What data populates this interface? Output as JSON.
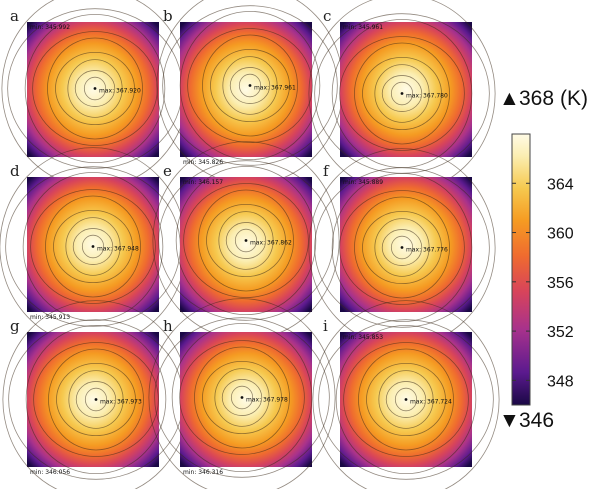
{
  "chart_data": {
    "type": "heatmap",
    "title": "",
    "colorbar": {
      "unit": "(K)",
      "max_label": "368",
      "min_label": "346",
      "max_arrow": "▲",
      "min_arrow": "▼",
      "range": [
        346,
        368
      ],
      "ticks": [
        "364",
        "360",
        "356",
        "352",
        "348"
      ],
      "tick_values": [
        364,
        360,
        356,
        352,
        348
      ],
      "colors": [
        "#1a0845",
        "#5b1a8e",
        "#a8328c",
        "#d8445a",
        "#ef6b2f",
        "#f59b22",
        "#f6c94f",
        "#fbeeb2",
        "#fffbe6"
      ]
    },
    "panels": [
      {
        "label": "a",
        "max_text": "max: 367.920",
        "min_text": "min: 345.992",
        "min_at": "top"
      },
      {
        "label": "b",
        "max_text": "max: 367.961",
        "min_text": "min: 345.826",
        "min_at": "bottom"
      },
      {
        "label": "c",
        "max_text": "max: 367.780",
        "min_text": "min: 345.961",
        "min_at": "top"
      },
      {
        "label": "d",
        "max_text": "max: 367.948",
        "min_text": "min: 345.913",
        "min_at": "bottom"
      },
      {
        "label": "e",
        "max_text": "max: 367.862",
        "min_text": "min: 346.157",
        "min_at": "top"
      },
      {
        "label": "f",
        "max_text": "max: 367.776",
        "min_text": "min: 345.889",
        "min_at": "top"
      },
      {
        "label": "g",
        "max_text": "max: 367.973",
        "min_text": "min: 346.056",
        "min_at": "bottom"
      },
      {
        "label": "h",
        "max_text": "max: 367.978",
        "min_text": "min: 346.316",
        "min_at": "bottom"
      },
      {
        "label": "i",
        "max_text": "max: 367.724",
        "min_text": "min: 345.853",
        "min_at": "top"
      }
    ]
  }
}
